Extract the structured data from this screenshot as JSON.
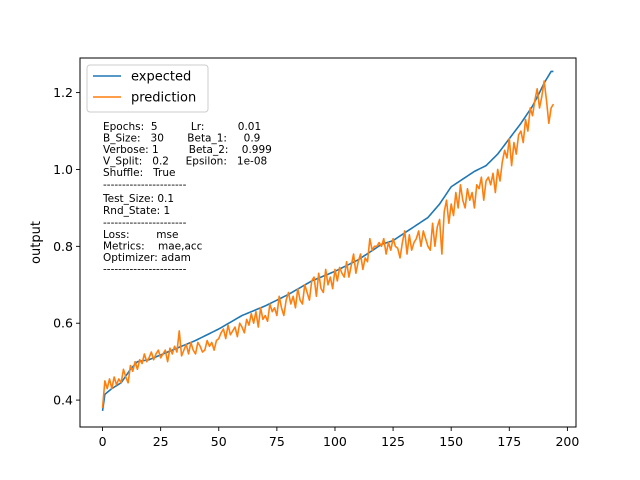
{
  "chart_data": {
    "type": "line",
    "xlabel": "",
    "ylabel": "output",
    "xlim": [
      -9.7,
      203.7
    ],
    "ylim": [
      0.33,
      1.29
    ],
    "xticks": [
      0,
      25,
      50,
      75,
      100,
      125,
      150,
      175,
      200
    ],
    "yticks": [
      0.4,
      0.6,
      0.8,
      1.0,
      1.2
    ],
    "ytick_labels": [
      "0.4",
      "0.6",
      "0.8",
      "1.0",
      "1.2"
    ],
    "legend": {
      "placement": "top-left"
    },
    "grid": false,
    "series": [
      {
        "name": "expected",
        "color": "#1f77b4",
        "keypoints": [
          [
            0,
            0.372
          ],
          [
            1,
            0.415
          ],
          [
            4,
            0.43
          ],
          [
            8,
            0.445
          ],
          [
            12,
            0.48
          ],
          [
            15,
            0.5
          ],
          [
            20,
            0.505
          ],
          [
            30,
            0.53
          ],
          [
            40,
            0.555
          ],
          [
            50,
            0.585
          ],
          [
            60,
            0.62
          ],
          [
            70,
            0.645
          ],
          [
            80,
            0.675
          ],
          [
            90,
            0.71
          ],
          [
            100,
            0.735
          ],
          [
            110,
            0.765
          ],
          [
            120,
            0.805
          ],
          [
            125,
            0.815
          ],
          [
            130,
            0.835
          ],
          [
            140,
            0.875
          ],
          [
            145,
            0.91
          ],
          [
            150,
            0.955
          ],
          [
            155,
            0.975
          ],
          [
            160,
            0.995
          ],
          [
            165,
            1.01
          ],
          [
            170,
            1.04
          ],
          [
            175,
            1.08
          ],
          [
            180,
            1.12
          ],
          [
            185,
            1.165
          ],
          [
            188,
            1.2
          ],
          [
            190,
            1.225
          ],
          [
            193,
            1.255
          ]
        ]
      },
      {
        "name": "prediction",
        "color": "#ff7f0e",
        "values": [
          0.38,
          0.45,
          0.43,
          0.455,
          0.43,
          0.46,
          0.44,
          0.455,
          0.445,
          0.48,
          0.46,
          0.445,
          0.49,
          0.475,
          0.5,
          0.48,
          0.505,
          0.495,
          0.52,
          0.5,
          0.51,
          0.525,
          0.505,
          0.52,
          0.53,
          0.51,
          0.52,
          0.53,
          0.5,
          0.535,
          0.52,
          0.54,
          0.525,
          0.58,
          0.515,
          0.53,
          0.545,
          0.52,
          0.55,
          0.53,
          0.52,
          0.55,
          0.54,
          0.525,
          0.53,
          0.555,
          0.54,
          0.55,
          0.53,
          0.555,
          0.56,
          0.575,
          0.585,
          0.56,
          0.595,
          0.57,
          0.58,
          0.59,
          0.565,
          0.6,
          0.59,
          0.575,
          0.61,
          0.595,
          0.625,
          0.6,
          0.63,
          0.59,
          0.64,
          0.61,
          0.62,
          0.605,
          0.65,
          0.63,
          0.64,
          0.62,
          0.67,
          0.64,
          0.62,
          0.66,
          0.68,
          0.65,
          0.67,
          0.64,
          0.69,
          0.66,
          0.65,
          0.7,
          0.68,
          0.66,
          0.71,
          0.72,
          0.67,
          0.73,
          0.69,
          0.68,
          0.74,
          0.7,
          0.72,
          0.69,
          0.74,
          0.71,
          0.745,
          0.73,
          0.72,
          0.76,
          0.72,
          0.75,
          0.78,
          0.73,
          0.76,
          0.78,
          0.74,
          0.77,
          0.76,
          0.82,
          0.79,
          0.8,
          0.8,
          0.81,
          0.8,
          0.82,
          0.78,
          0.81,
          0.79,
          0.82,
          0.8,
          0.795,
          0.77,
          0.81,
          0.84,
          0.78,
          0.83,
          0.79,
          0.81,
          0.82,
          0.84,
          0.8,
          0.84,
          0.82,
          0.8,
          0.79,
          0.86,
          0.8,
          0.85,
          0.87,
          0.78,
          0.89,
          0.92,
          0.86,
          0.91,
          0.88,
          0.94,
          0.9,
          0.96,
          0.92,
          0.9,
          0.95,
          0.92,
          0.94,
          0.9,
          0.96,
          0.95,
          0.98,
          0.92,
          0.97,
          0.98,
          0.96,
          0.99,
          0.94,
          1.0,
          0.97,
          1.02,
          1.05,
          1.03,
          1.08,
          1.01,
          1.07,
          1.04,
          1.09,
          1.1,
          1.07,
          1.13,
          1.1,
          1.16,
          1.14,
          1.18,
          1.21,
          1.16,
          1.19,
          1.23,
          1.18,
          1.12,
          1.16,
          1.17
        ]
      }
    ],
    "annotation_lines": [
      "Epochs:  5          Lr:          0.01",
      "B_Size:   30       Beta_1:     0.9",
      "Verbose: 1         Beta_2:    0.999",
      "V_Split:   0.2     Epsilon:   1e-08",
      "Shuffle:   True",
      "----------------------",
      "Test_Size: 0.1",
      "Rnd_State: 1",
      "----------------------",
      "Loss:        mse",
      "Metrics:    mae,acc",
      "Optimizer: adam",
      "----------------------"
    ]
  }
}
